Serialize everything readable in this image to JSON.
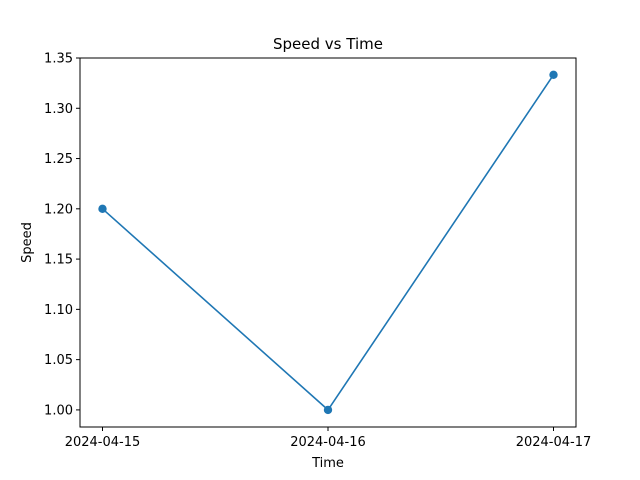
{
  "chart_data": {
    "type": "line",
    "title": "Speed vs Time",
    "xlabel": "Time",
    "ylabel": "Speed",
    "x": [
      "2024-04-15",
      "2024-04-16",
      "2024-04-17"
    ],
    "series": [
      {
        "values": [
          1.2,
          1.0,
          1.3333
        ],
        "color": "#1f77b4",
        "marker": "circle"
      }
    ],
    "ylim": [
      0.983,
      1.35
    ],
    "y_ticks": [
      "1.00",
      "1.05",
      "1.10",
      "1.15",
      "1.20",
      "1.25",
      "1.30",
      "1.35"
    ],
    "grid": false,
    "legend": false
  }
}
